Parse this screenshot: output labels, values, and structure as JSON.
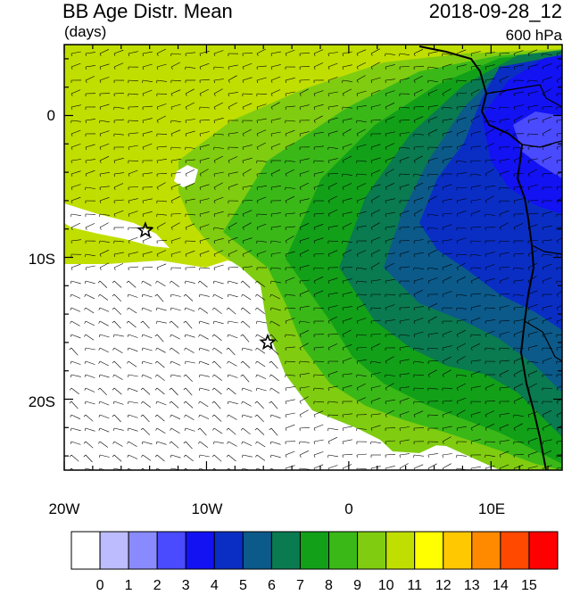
{
  "title": "BB Age Distr. Mean",
  "units": "(days)",
  "datetime": "2018-09-28_12",
  "level": "600 hPa",
  "lat_labels": [
    "0",
    "10S",
    "20S"
  ],
  "lon_labels": [
    "20W",
    "10W",
    "0",
    "10E"
  ],
  "colorbar": {
    "labels": [
      "0",
      "1",
      "2",
      "3",
      "4",
      "5",
      "6",
      "7",
      "8",
      "9",
      "10",
      "11",
      "12",
      "13",
      "14",
      "15"
    ],
    "colors": [
      "#ffffff",
      "#bcbcff",
      "#8a8aff",
      "#4a4aff",
      "#1212f2",
      "#0a2ec4",
      "#0b5a8a",
      "#0a7a50",
      "#12a018",
      "#3ab818",
      "#80cc10",
      "#c0de00",
      "#ffff00",
      "#ffc800",
      "#ff8a00",
      "#ff4800",
      "#ff0000"
    ]
  },
  "markers": [
    {
      "name": "star-marker-1",
      "lon": -14.3,
      "lat": -8.1
    },
    {
      "name": "star-marker-2",
      "lon": -5.7,
      "lat": -16.0
    }
  ]
}
